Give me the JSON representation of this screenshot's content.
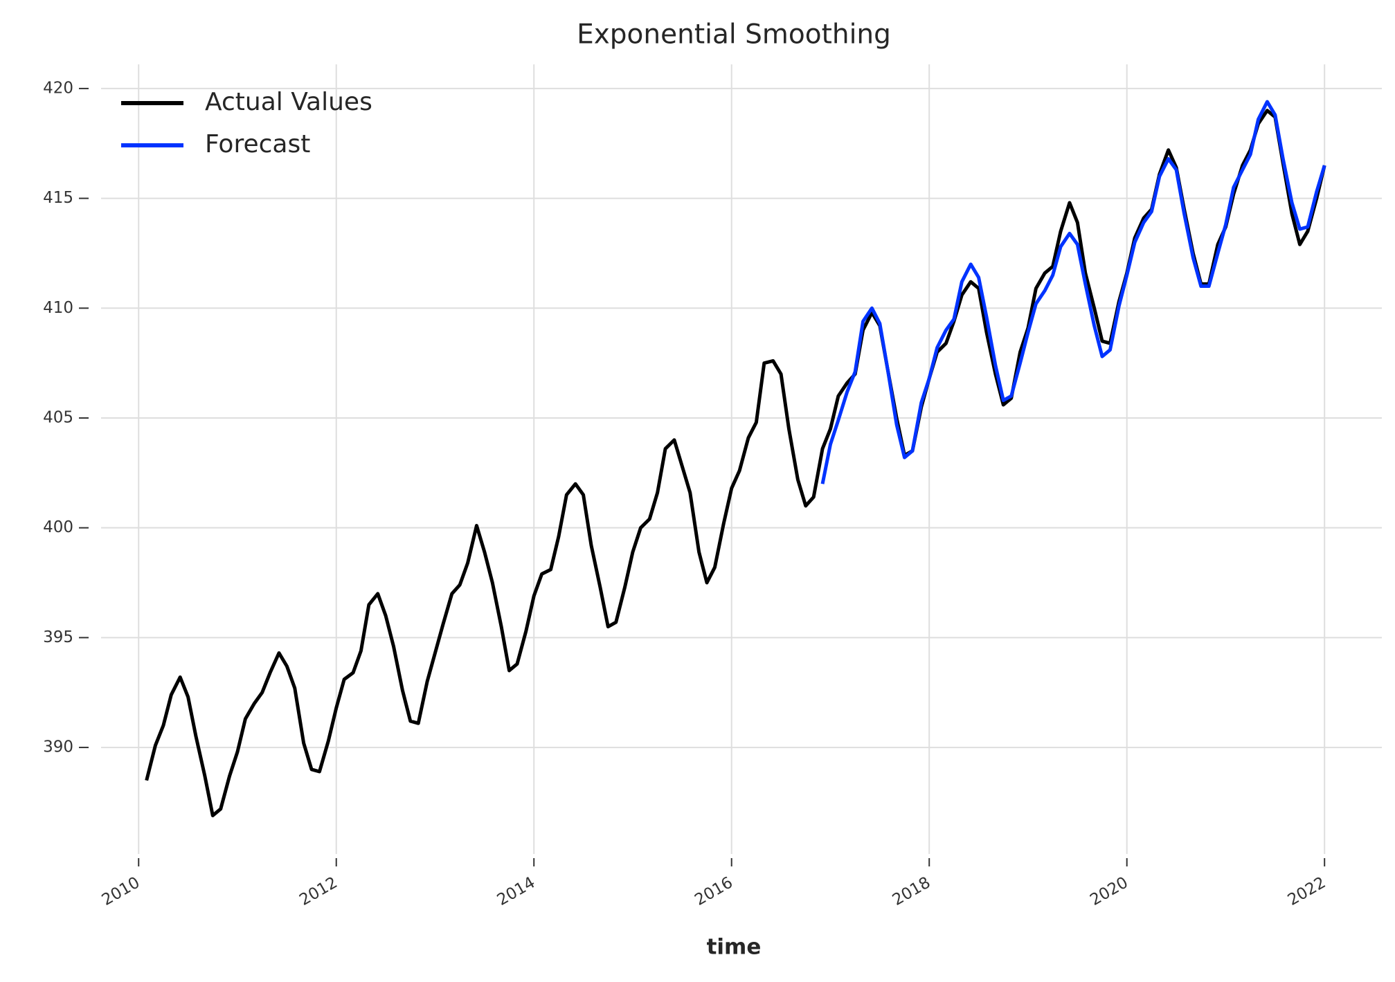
{
  "chart_data": {
    "type": "line",
    "title": "Exponential Smoothing",
    "xlabel": "time",
    "x": [
      2010.08,
      2010.17,
      2010.25,
      2010.33,
      2010.42,
      2010.5,
      2010.58,
      2010.67,
      2010.75,
      2010.83,
      2010.92,
      2011,
      2011.08,
      2011.17,
      2011.25,
      2011.33,
      2011.42,
      2011.5,
      2011.58,
      2011.67,
      2011.75,
      2011.83,
      2011.92,
      2012,
      2012.08,
      2012.17,
      2012.25,
      2012.33,
      2012.42,
      2012.5,
      2012.58,
      2012.67,
      2012.75,
      2012.83,
      2012.92,
      2013,
      2013.08,
      2013.17,
      2013.25,
      2013.33,
      2013.42,
      2013.5,
      2013.58,
      2013.67,
      2013.75,
      2013.83,
      2013.92,
      2014,
      2014.08,
      2014.17,
      2014.25,
      2014.33,
      2014.42,
      2014.5,
      2014.58,
      2014.67,
      2014.75,
      2014.83,
      2014.92,
      2015,
      2015.08,
      2015.17,
      2015.25,
      2015.33,
      2015.42,
      2015.5,
      2015.58,
      2015.67,
      2015.75,
      2015.83,
      2015.92,
      2016,
      2016.08,
      2016.17,
      2016.25,
      2016.33,
      2016.42,
      2016.5,
      2016.58,
      2016.67,
      2016.75,
      2016.83,
      2016.92,
      2017,
      2017.08,
      2017.17,
      2017.25,
      2017.33,
      2017.42,
      2017.5,
      2017.58,
      2017.67,
      2017.75,
      2017.83,
      2017.92,
      2018,
      2018.08,
      2018.17,
      2018.25,
      2018.33,
      2018.42,
      2018.5,
      2018.58,
      2018.67,
      2018.75,
      2018.83,
      2018.92,
      2019,
      2019.08,
      2019.17,
      2019.25,
      2019.33,
      2019.42,
      2019.5,
      2019.58,
      2019.67,
      2019.75,
      2019.83,
      2019.92,
      2020,
      2020.08,
      2020.17,
      2020.25,
      2020.33,
      2020.42,
      2020.5,
      2020.58,
      2020.67,
      2020.75,
      2020.83,
      2020.92,
      2021,
      2021.08,
      2021.17,
      2021.25,
      2021.33,
      2021.42,
      2021.5,
      2021.58,
      2021.67,
      2021.75,
      2021.83,
      2021.92,
      2022
    ],
    "series": [
      {
        "name": "Actual Values",
        "color": "#000000",
        "values": [
          388.5,
          390.1,
          391.0,
          392.4,
          393.2,
          392.3,
          390.5,
          388.7,
          386.9,
          387.2,
          388.7,
          389.8,
          391.3,
          392.0,
          392.5,
          393.4,
          394.3,
          393.7,
          392.7,
          390.2,
          389.0,
          388.9,
          390.3,
          391.8,
          393.1,
          393.4,
          394.4,
          396.5,
          397.0,
          396.0,
          394.6,
          392.6,
          391.2,
          391.1,
          393.0,
          394.3,
          395.6,
          397.0,
          397.4,
          398.4,
          400.1,
          398.9,
          397.5,
          395.5,
          393.5,
          393.8,
          395.3,
          396.9,
          397.9,
          398.1,
          399.6,
          401.5,
          402.0,
          401.5,
          399.2,
          397.3,
          395.5,
          395.7,
          397.3,
          398.9,
          400.0,
          400.4,
          401.6,
          403.6,
          404.0,
          402.8,
          401.6,
          398.9,
          397.5,
          398.2,
          400.2,
          401.8,
          402.6,
          404.1,
          404.8,
          407.5,
          407.6,
          407.0,
          404.5,
          402.2,
          401.0,
          401.4,
          403.6,
          404.5,
          406.0,
          406.6,
          407.0,
          409.0,
          409.8,
          409.2,
          407.2,
          405.0,
          403.3,
          403.5,
          405.5,
          406.8,
          408.0,
          408.4,
          409.4,
          410.6,
          411.2,
          410.9,
          408.9,
          407.0,
          405.6,
          405.9,
          408.0,
          409.1,
          410.9,
          411.6,
          411.9,
          413.5,
          414.8,
          413.9,
          411.6,
          410.0,
          408.5,
          408.4,
          410.3,
          411.6,
          413.2,
          414.1,
          414.5,
          416.1,
          417.2,
          416.4,
          414.5,
          412.5,
          411.1,
          411.1,
          412.9,
          413.7,
          415.2,
          416.5,
          417.2,
          418.4,
          419.0,
          418.7,
          416.6,
          414.3,
          412.9,
          413.5,
          415.0,
          416.5
        ]
      },
      {
        "name": "Forecast",
        "color": "#0033ff",
        "values": [
          null,
          null,
          null,
          null,
          null,
          null,
          null,
          null,
          null,
          null,
          null,
          null,
          null,
          null,
          null,
          null,
          null,
          null,
          null,
          null,
          null,
          null,
          null,
          null,
          null,
          null,
          null,
          null,
          null,
          null,
          null,
          null,
          null,
          null,
          null,
          null,
          null,
          null,
          null,
          null,
          null,
          null,
          null,
          null,
          null,
          null,
          null,
          null,
          null,
          null,
          null,
          null,
          null,
          null,
          null,
          null,
          null,
          null,
          null,
          null,
          null,
          null,
          null,
          null,
          null,
          null,
          null,
          null,
          null,
          null,
          null,
          null,
          null,
          null,
          null,
          null,
          null,
          null,
          null,
          null,
          null,
          null,
          402.0,
          403.8,
          404.9,
          406.2,
          407.1,
          409.4,
          410.0,
          409.3,
          407.2,
          404.7,
          403.2,
          403.5,
          405.7,
          406.8,
          408.2,
          409.0,
          409.5,
          411.2,
          412.0,
          411.4,
          409.6,
          407.4,
          405.8,
          406.0,
          407.5,
          408.9,
          410.2,
          410.8,
          411.5,
          412.8,
          413.4,
          412.9,
          411.1,
          409.2,
          407.8,
          408.1,
          410.1,
          411.5,
          413.0,
          413.9,
          414.4,
          416.0,
          416.8,
          416.3,
          414.3,
          412.3,
          411.0,
          411.0,
          412.5,
          413.8,
          415.5,
          416.3,
          417.0,
          418.6,
          419.4,
          418.8,
          416.8,
          414.8,
          413.6,
          413.7,
          415.3,
          416.5
        ]
      }
    ],
    "xlim": [
      2009.62,
      2022.58
    ],
    "xticks": [
      2010,
      2012,
      2014,
      2016,
      2018,
      2020,
      2022
    ],
    "ylim": [
      385.15,
      421.1
    ],
    "yticks": [
      390,
      395,
      400,
      405,
      410,
      415,
      420
    ],
    "grid": true,
    "legend": "upper left"
  }
}
